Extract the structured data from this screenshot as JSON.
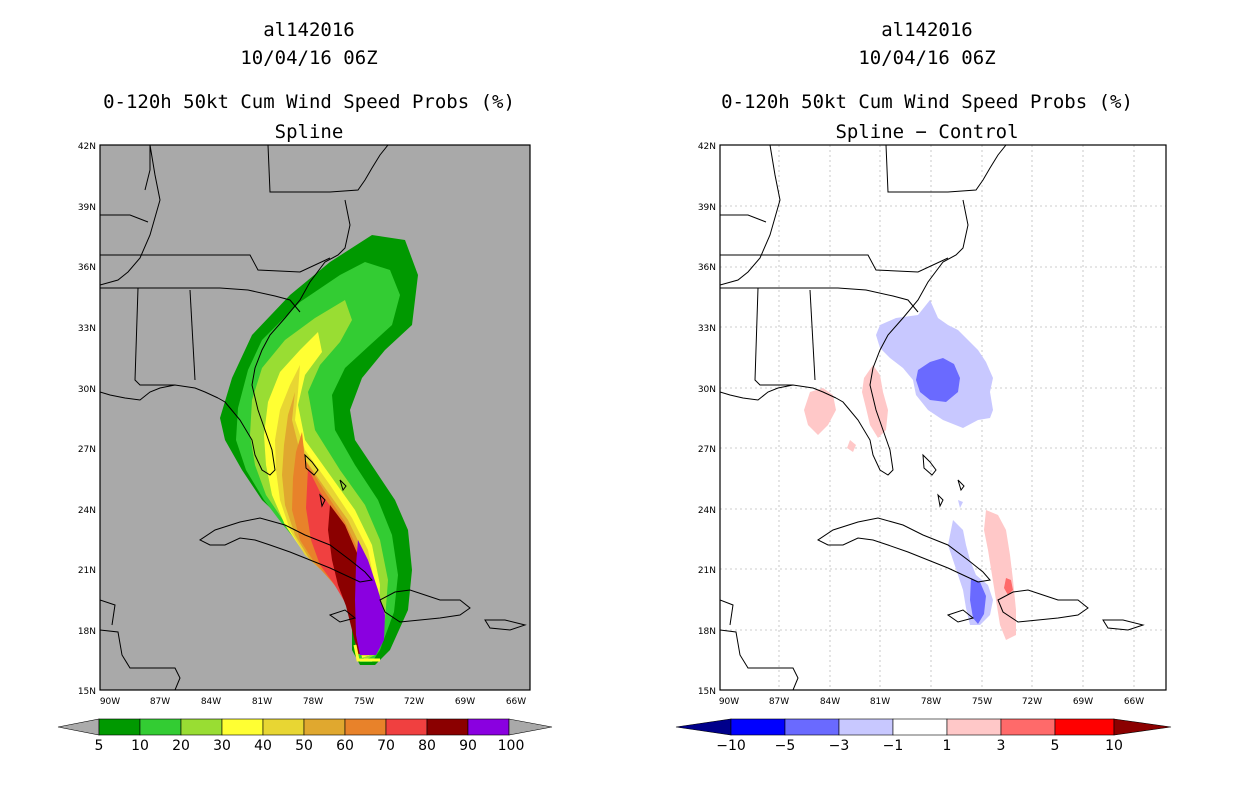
{
  "colors": {
    "land_bg": "#a9a9a9",
    "map_bg_right": "#ffffff",
    "coast": "#000000",
    "grid": "#bdbdbd"
  },
  "panels": [
    {
      "title_line1": "al142016",
      "title_line2": "10/04/16 06Z",
      "title_line3": "0-120h 50kt Cum Wind Speed Probs (%)",
      "title_line4": "Spline"
    },
    {
      "title_line1": "al142016",
      "title_line2": "10/04/16 06Z",
      "title_line3": "0-120h 50kt Cum Wind Speed Probs (%)",
      "title_line4": "Spline − Control"
    }
  ],
  "axes": {
    "lat_labels": [
      "42N",
      "39N",
      "36N",
      "33N",
      "30N",
      "27N",
      "24N",
      "21N",
      "18N",
      "15N"
    ],
    "lon_labels": [
      "90W",
      "87W",
      "84W",
      "81W",
      "78W",
      "75W",
      "72W",
      "69W",
      "66W"
    ]
  },
  "colorbar_left": {
    "labels": [
      "5",
      "10",
      "20",
      "30",
      "40",
      "50",
      "60",
      "70",
      "80",
      "90",
      "100"
    ],
    "colors": [
      "#ababab",
      "#009900",
      "#33cc33",
      "#99dd33",
      "#ffff33",
      "#e8d633",
      "#e0a82f",
      "#e8822a",
      "#f04040",
      "#8b0000",
      "#8a00e0",
      "#a9a9a9"
    ]
  },
  "colorbar_right": {
    "labels": [
      "−10",
      "−5",
      "−3",
      "−1",
      "1",
      "3",
      "5",
      "10"
    ],
    "colors": [
      "#00008b",
      "#0000ff",
      "#6a6aff",
      "#c8c8ff",
      "#ffffff",
      "#ffc8c8",
      "#ff6a6a",
      "#ff0000",
      "#8b0000"
    ]
  }
}
